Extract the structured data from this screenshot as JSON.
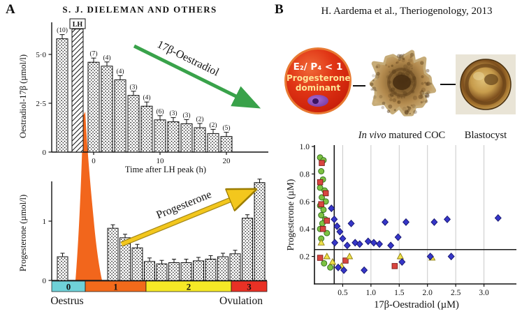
{
  "panel_a": {
    "label": "A",
    "title": "S. J. DIELEMAN AND OTHERS"
  },
  "panel_b": {
    "label": "B",
    "citation": "H. Aardema et al., Theriogenology, 2013",
    "badge": {
      "ratio": "E₂/ P₄ < 1",
      "line2": "Progesterone",
      "line3": "dominant"
    },
    "coc_label_italic": "In vivo",
    "coc_label_rest": " matured COC",
    "blastocyst_label": "Blastocyst"
  },
  "chart_data": [
    {
      "id": "oestradiol-time-course",
      "type": "bar",
      "title": "Oestradiol-17β around the LH peak",
      "ylabel": "Oestradiol-17β (µmol/l)",
      "xlabel": "Time after LH peak (h)",
      "ylim": [
        0,
        6.5
      ],
      "yticks": [
        {
          "v": 0,
          "label": "0"
        },
        {
          "v": 2.5,
          "label": "2·5"
        },
        {
          "v": 5,
          "label": "5·0"
        }
      ],
      "xticks": [
        {
          "t": 0,
          "label": "0"
        },
        {
          "t": 10,
          "label": "10"
        },
        {
          "t": 20,
          "label": "20"
        }
      ],
      "pre_lh_bar": {
        "n_label": "(10)",
        "value": 5.8
      },
      "lh_marker": {
        "label": "LH",
        "value": 6.3
      },
      "bars": [
        {
          "t": 0,
          "n_label": "(7)",
          "value": 4.6
        },
        {
          "t": 2,
          "n_label": "(4)",
          "value": 4.4
        },
        {
          "t": 4,
          "n_label": "(4)",
          "value": 3.7
        },
        {
          "t": 6,
          "n_label": "(3)",
          "value": 2.9
        },
        {
          "t": 8,
          "n_label": "(4)",
          "value": 2.35
        },
        {
          "t": 10,
          "n_label": "(6)",
          "value": 1.65
        },
        {
          "t": 12,
          "n_label": "(3)",
          "value": 1.55
        },
        {
          "t": 14,
          "n_label": "(3)",
          "value": 1.45
        },
        {
          "t": 16,
          "n_label": "(2)",
          "value": 1.25
        },
        {
          "t": 18,
          "n_label": "(2)",
          "value": 0.95
        },
        {
          "t": 20,
          "n_label": "(5)",
          "value": 0.8
        }
      ],
      "trend_arrow_label": "17β-Oestradiol",
      "trend_arrow_color": "#2f9e41"
    },
    {
      "id": "progesterone-time-course",
      "type": "bar",
      "title": "Progesterone around the LH peak",
      "ylabel": "Progesterone (µmol/l)",
      "ylim": [
        0,
        1.8
      ],
      "yticks": [
        {
          "v": 0,
          "label": "0"
        },
        {
          "v": 1,
          "label": "1"
        }
      ],
      "pre_bar": {
        "value": 0.4
      },
      "lh_surge_color": "#f2661c",
      "bars": [
        0.88,
        0.72,
        0.55,
        0.32,
        0.28,
        0.3,
        0.3,
        0.33,
        0.36,
        0.4,
        0.45,
        1.05,
        1.65
      ],
      "stages": [
        {
          "label": "0",
          "color": "#6fd1d8"
        },
        {
          "label": "1",
          "color": "#f26a1b"
        },
        {
          "label": "2",
          "color": "#f6e926"
        },
        {
          "label": "3",
          "color": "#e93125"
        }
      ],
      "left_label": "Oestrus",
      "right_label": "Ovulation",
      "trend_arrow_label": "Progesterone",
      "trend_arrow_color": "#f3c71d"
    },
    {
      "id": "follicular-fluid-scatter",
      "type": "scatter",
      "xlabel": "17β-Oestradiol (µM)",
      "ylabel": "Progesterone (µM)",
      "xlim": [
        0,
        3.5
      ],
      "ylim": [
        0,
        1.0
      ],
      "xticks": [
        {
          "v": 0.5,
          "label": "0.5"
        },
        {
          "v": 1.0,
          "label": "1.0"
        },
        {
          "v": 1.5,
          "label": "1.5"
        },
        {
          "v": 2.0,
          "label": "2.0"
        },
        {
          "v": 2.5,
          "label": "2.5"
        },
        {
          "v": 3.0,
          "label": "3.0"
        }
      ],
      "yticks": [
        {
          "v": 0.2,
          "label": "0.2"
        },
        {
          "v": 0.4,
          "label": "0.4"
        },
        {
          "v": 0.6,
          "label": "0.6"
        },
        {
          "v": 0.8,
          "label": "0.8"
        },
        {
          "v": 1.0,
          "label": "1.0"
        }
      ],
      "grid": "vertical",
      "threshold_x": 0.35,
      "threshold_y": 0.25,
      "series": [
        {
          "name": "green-circles",
          "marker": "circle",
          "color": "#7dc243",
          "edge": "#2f6b1a",
          "points": [
            [
              0.1,
              0.92
            ],
            [
              0.16,
              0.9
            ],
            [
              0.12,
              0.82
            ],
            [
              0.15,
              0.76
            ],
            [
              0.1,
              0.7
            ],
            [
              0.18,
              0.68
            ],
            [
              0.13,
              0.63
            ],
            [
              0.2,
              0.6
            ],
            [
              0.1,
              0.57
            ],
            [
              0.16,
              0.54
            ],
            [
              0.12,
              0.5
            ],
            [
              0.19,
              0.47
            ],
            [
              0.14,
              0.44
            ],
            [
              0.1,
              0.4
            ],
            [
              0.22,
              0.37
            ],
            [
              0.12,
              0.33
            ],
            [
              0.17,
              0.15
            ],
            [
              0.28,
              0.12
            ]
          ]
        },
        {
          "name": "red-squares",
          "marker": "square",
          "color": "#d94540",
          "edge": "#7c1d1d",
          "points": [
            [
              0.13,
              0.88
            ],
            [
              0.1,
              0.74
            ],
            [
              0.2,
              0.66
            ],
            [
              0.12,
              0.58
            ],
            [
              0.22,
              0.46
            ],
            [
              0.15,
              0.4
            ],
            [
              0.1,
              0.19
            ],
            [
              0.55,
              0.17
            ],
            [
              1.42,
              0.13
            ]
          ]
        },
        {
          "name": "yellow-triangles",
          "marker": "triangle",
          "color": "#efe24b",
          "edge": "#8f7d12",
          "points": [
            [
              0.12,
              0.3
            ],
            [
              0.22,
              0.2
            ],
            [
              0.32,
              0.16
            ],
            [
              0.48,
              0.13
            ],
            [
              0.62,
              0.2
            ],
            [
              1.52,
              0.2
            ],
            [
              2.08,
              0.19
            ]
          ]
        },
        {
          "name": "blue-diamonds",
          "marker": "diamond",
          "color": "#3636c8",
          "edge": "#14146e",
          "points": [
            [
              0.3,
              0.55
            ],
            [
              0.35,
              0.47
            ],
            [
              0.4,
              0.42
            ],
            [
              0.45,
              0.38
            ],
            [
              0.36,
              0.3
            ],
            [
              0.5,
              0.33
            ],
            [
              0.58,
              0.28
            ],
            [
              0.65,
              0.44
            ],
            [
              0.72,
              0.3
            ],
            [
              0.8,
              0.29
            ],
            [
              0.88,
              0.1
            ],
            [
              0.95,
              0.31
            ],
            [
              1.05,
              0.3
            ],
            [
              1.15,
              0.29
            ],
            [
              1.25,
              0.45
            ],
            [
              1.35,
              0.28
            ],
            [
              1.48,
              0.34
            ],
            [
              1.55,
              0.16
            ],
            [
              1.62,
              0.45
            ],
            [
              2.05,
              0.2
            ],
            [
              2.12,
              0.45
            ],
            [
              2.35,
              0.47
            ],
            [
              2.42,
              0.2
            ],
            [
              3.25,
              0.48
            ],
            [
              0.42,
              0.12
            ],
            [
              0.52,
              0.1
            ]
          ]
        }
      ]
    }
  ]
}
